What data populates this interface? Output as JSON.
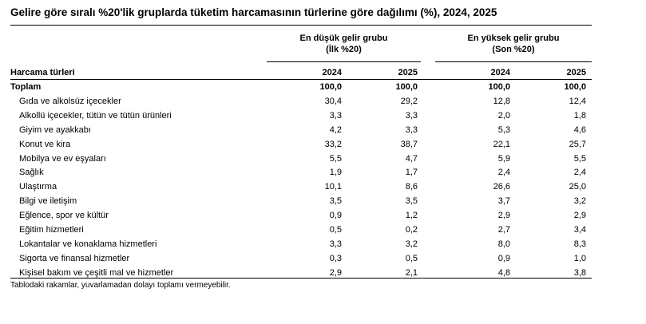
{
  "title": "Gelire göre sıralı %20'lik gruplarda tüketim harcamasının türlerine göre dağılımı (%), 2024, 2025",
  "groups": {
    "low": {
      "line1": "En düşük gelir grubu",
      "line2": "(İlk %20)"
    },
    "high": {
      "line1": "En yüksek gelir grubu",
      "line2": "(Son %20)"
    }
  },
  "header": {
    "label": "Harcama türleri",
    "years": [
      "2024",
      "2025",
      "2024",
      "2025"
    ]
  },
  "rows": [
    {
      "label": "Toplam",
      "values": [
        "100,0",
        "100,0",
        "100,0",
        "100,0"
      ],
      "bold": true
    },
    {
      "label": "Gıda ve alkolsüz içecekler",
      "values": [
        "30,4",
        "29,2",
        "12,8",
        "12,4"
      ]
    },
    {
      "label": "Alkollü içecekler, tütün ve tütün ürünleri",
      "values": [
        "3,3",
        "3,3",
        "2,0",
        "1,8"
      ]
    },
    {
      "label": "Giyim ve ayakkabı",
      "values": [
        "4,2",
        "3,3",
        "5,3",
        "4,6"
      ]
    },
    {
      "label": "Konut ve kira",
      "values": [
        "33,2",
        "38,7",
        "22,1",
        "25,7"
      ]
    },
    {
      "label": "Mobilya ve ev eşyaları",
      "values": [
        "5,5",
        "4,7",
        "5,9",
        "5,5"
      ]
    },
    {
      "label": "Sağlık",
      "values": [
        "1,9",
        "1,7",
        "2,4",
        "2,4"
      ]
    },
    {
      "label": "Ulaştırma",
      "values": [
        "10,1",
        "8,6",
        "26,6",
        "25,0"
      ]
    },
    {
      "label": "Bilgi ve iletişim",
      "values": [
        "3,5",
        "3,5",
        "3,7",
        "3,2"
      ]
    },
    {
      "label": "Eğlence, spor ve kültür",
      "values": [
        "0,9",
        "1,2",
        "2,9",
        "2,9"
      ]
    },
    {
      "label": "Eğitim hizmetleri",
      "values": [
        "0,5",
        "0,2",
        "2,7",
        "3,4"
      ]
    },
    {
      "label": "Lokantalar ve konaklama hizmetleri",
      "values": [
        "3,3",
        "3,2",
        "8,0",
        "8,3"
      ]
    },
    {
      "label": "Sigorta ve finansal hizmetler",
      "values": [
        "0,3",
        "0,5",
        "0,9",
        "1,0"
      ]
    },
    {
      "label": "Kişisel bakım ve çeşitli mal ve hizmetler",
      "values": [
        "2,9",
        "2,1",
        "4,8",
        "3,8"
      ]
    }
  ],
  "footnote": "Tablodaki rakamlar, yuvarlamadan dolayı toplamı vermeyebilir."
}
